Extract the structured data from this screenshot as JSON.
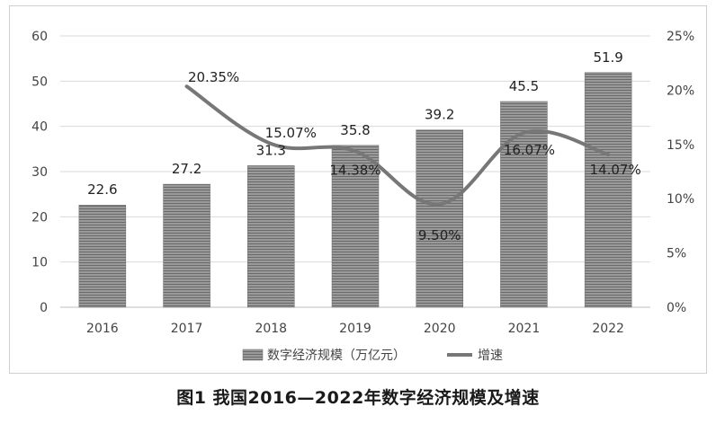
{
  "chart_data": {
    "type": "bar",
    "categories": [
      "2016",
      "2017",
      "2018",
      "2019",
      "2020",
      "2021",
      "2022"
    ],
    "series": [
      {
        "name": "数字经济规模（万亿元）",
        "type": "bar",
        "axis": "left",
        "values": [
          22.6,
          27.2,
          31.3,
          35.8,
          39.2,
          45.5,
          51.9
        ],
        "labels": [
          "22.6",
          "27.2",
          "31.3",
          "35.8",
          "39.2",
          "45.5",
          "51.9"
        ]
      },
      {
        "name": "增速",
        "type": "line",
        "axis": "right",
        "values": [
          null,
          20.35,
          15.07,
          14.38,
          9.5,
          16.07,
          14.07
        ],
        "labels": [
          "",
          "20.35%",
          "15.07%",
          "14.38%",
          "9.50%",
          "16.07%",
          "14.07%"
        ]
      }
    ],
    "y_left": {
      "min": 0,
      "max": 60,
      "ticks": [
        "0",
        "10",
        "20",
        "30",
        "40",
        "50",
        "60"
      ]
    },
    "y_right": {
      "min": 0,
      "max": 25,
      "ticks": [
        "0%",
        "5%",
        "10%",
        "15%",
        "20%",
        "25%"
      ]
    },
    "grid": true,
    "legend_position": "bottom",
    "title": "图1  我国2016—2022年数字经济规模及增速",
    "colors": {
      "bar_fill": "#8c8c8c",
      "bar_stripe": "#6e6e6e",
      "line": "#777777",
      "grid": "#d9d9d9",
      "text": "#444444"
    }
  }
}
